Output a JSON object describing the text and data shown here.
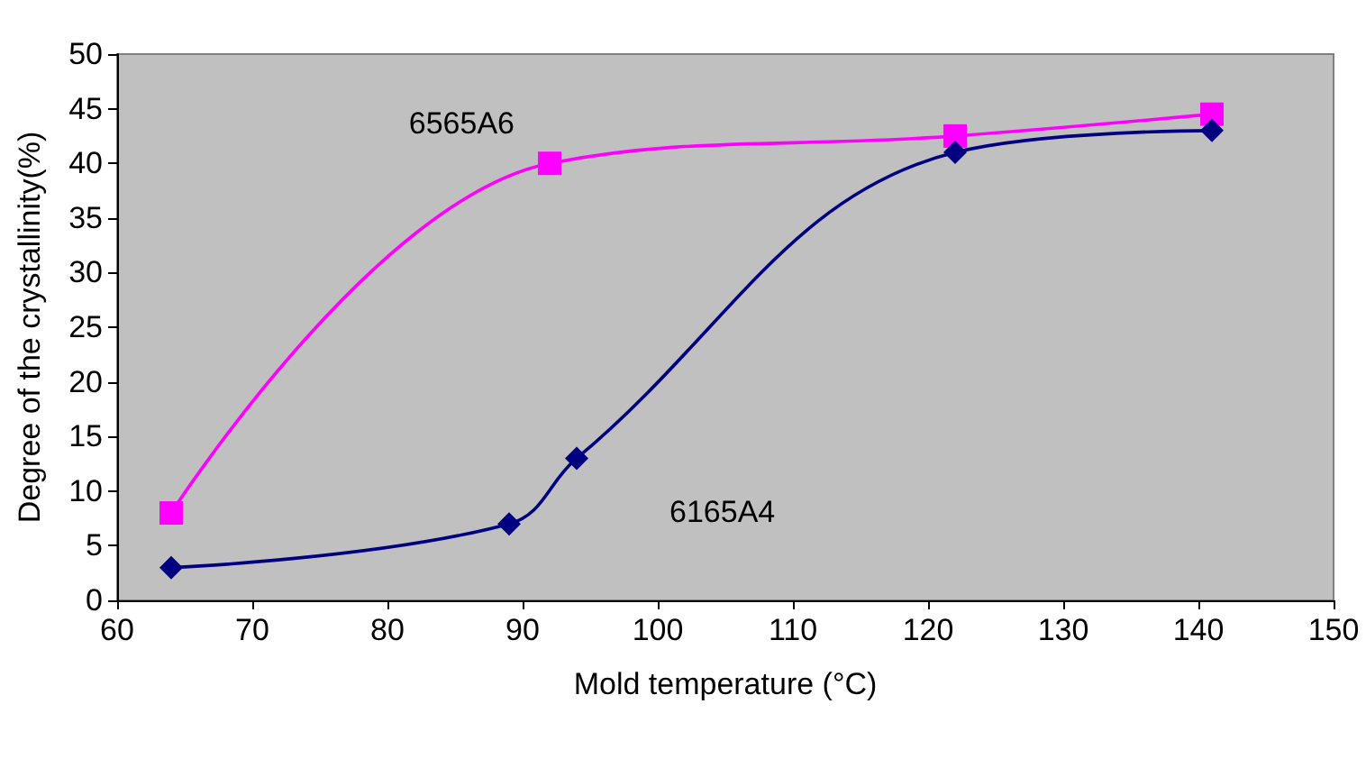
{
  "chart_data": {
    "type": "line",
    "xlabel": "Mold temperature (°C)",
    "ylabel": "Degree of the crystallinity(%)",
    "xlim": [
      60,
      150
    ],
    "xticks": [
      60,
      70,
      80,
      90,
      100,
      110,
      120,
      130,
      140,
      150
    ],
    "ylim": [
      0,
      50
    ],
    "yticks": [
      0,
      5,
      10,
      15,
      20,
      25,
      30,
      35,
      40,
      45,
      50
    ],
    "series": [
      {
        "name": "6565A6",
        "color": "#ff00ff",
        "marker": "square",
        "x": [
          64,
          92,
          122,
          141
        ],
        "values": [
          8,
          40,
          42.5,
          44.5
        ]
      },
      {
        "name": "6165A4",
        "color": "#000080",
        "marker": "diamond",
        "x": [
          64,
          89,
          94,
          122,
          141
        ],
        "values": [
          3,
          7,
          13,
          41,
          43
        ]
      }
    ]
  }
}
